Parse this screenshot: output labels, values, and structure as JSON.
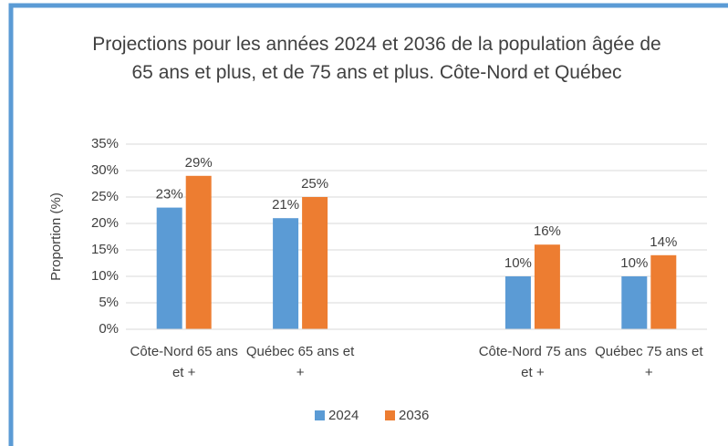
{
  "chart_data": {
    "type": "bar",
    "title": "Projections pour les années 2024 et 2036 de la population âgée de 65 ans et plus, et de 75 ans et plus. Côte-Nord et Québec",
    "y_label": "Proportion (%)",
    "categories": [
      "Côte-Nord 65 ans et +",
      "Québec 65 ans et +",
      null,
      "Côte-Nord 75 ans et +",
      "Québec 75 ans et +"
    ],
    "series": [
      {
        "name": "2024",
        "color": "#5b9bd5",
        "values": [
          23,
          21,
          null,
          10,
          10
        ],
        "value_labels": [
          "23%",
          "21%",
          null,
          "10%",
          "10%"
        ]
      },
      {
        "name": "2036",
        "color": "#ed7d31",
        "values": [
          29,
          25,
          null,
          16,
          14
        ],
        "value_labels": [
          "29%",
          "25%",
          null,
          "16%",
          "14%"
        ]
      }
    ],
    "ylim": [
      0,
      35
    ],
    "yticks": [
      {
        "value": 0,
        "label": "0%"
      },
      {
        "value": 5,
        "label": "5%"
      },
      {
        "value": 10,
        "label": "10%"
      },
      {
        "value": 15,
        "label": "15%"
      },
      {
        "value": 20,
        "label": "20%"
      },
      {
        "value": 25,
        "label": "25%"
      },
      {
        "value": 30,
        "label": "30%"
      },
      {
        "value": 35,
        "label": "35%"
      }
    ],
    "grid": true,
    "legend": "bottom"
  }
}
